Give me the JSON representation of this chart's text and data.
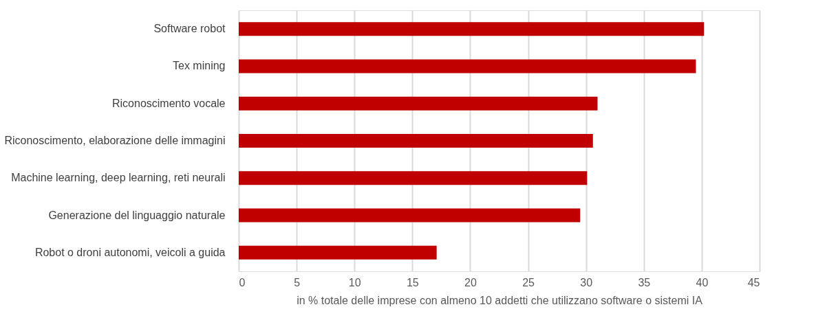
{
  "chart_data": {
    "type": "bar",
    "orientation": "horizontal",
    "xlabel": "in %  totale delle imprese con almeno 10 addetti che utilizzano software o sistemi IA",
    "categories": [
      "Software robot",
      "Tex mining",
      "Riconoscimento vocale",
      "Riconoscimento, elaborazione delle immagini",
      "Machine learning, deep learning, reti neurali",
      "Generazione del linguaggio naturale",
      "Robot o droni autonomi, veicoli a guida"
    ],
    "values": [
      40.2,
      39.5,
      31.0,
      30.6,
      30.1,
      29.5,
      17.1
    ],
    "color": "#c00000",
    "xlim": [
      0,
      45
    ],
    "xticks": [
      0,
      5,
      10,
      15,
      20,
      25,
      30,
      35,
      40,
      45
    ],
    "grid": "x"
  }
}
